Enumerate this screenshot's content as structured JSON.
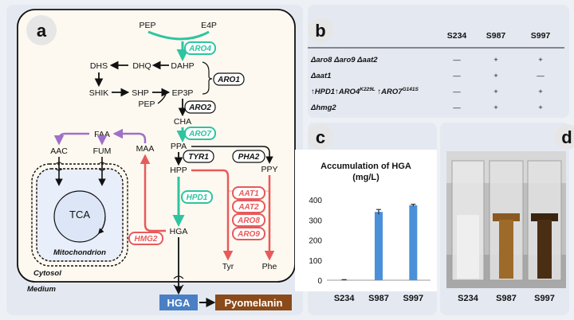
{
  "panel_labels": {
    "a": "a",
    "b": "b",
    "c": "c",
    "d": "d"
  },
  "pathway": {
    "metabolites": {
      "pep_top": "PEP",
      "e4p": "E4P",
      "dahp": "DAHP",
      "dhq": "DHQ",
      "dhs": "DHS",
      "shik": "SHIK",
      "shp": "SHP",
      "ep3p": "EP3P",
      "pep_mid": "PEP",
      "cha": "CHA",
      "ppa": "PPA",
      "hpp": "HPP",
      "ppy": "PPY",
      "faa": "FAA",
      "maa": "MAA",
      "aac": "AAC",
      "fum": "FUM",
      "hga": "HGA",
      "tyr": "Tyr",
      "phe": "Phe",
      "tca": "TCA"
    },
    "enzymes": {
      "aro4": "ARO4",
      "aro1": "ARO1",
      "aro2": "ARO2",
      "aro7": "ARO7",
      "tyr1": "TYR1",
      "pha2": "PHA2",
      "hpd1": "HPD1",
      "hmg2": "HMG2",
      "aat1": "AAT1",
      "aat2": "AAT2",
      "aro8": "ARO8",
      "aro9": "ARO9"
    },
    "compartments": {
      "mitochondrion": "Mitochondrion",
      "cytosol": "Cytosol",
      "medium": "Medium"
    },
    "products": {
      "hga": "HGA",
      "pyomelanin": "Pyomelanin"
    },
    "colors": {
      "overexpressed": "#2ec4a0",
      "deleted": "#e85a5a",
      "degradation": "#a070c8",
      "hga_box": "#4a7fc4",
      "pyomelanin_box": "#8a4a1a"
    }
  },
  "table": {
    "headers": [
      "S234",
      "S987",
      "S997"
    ],
    "rows": [
      {
        "label": "Δaro8 Δaro9 Δaat2",
        "values": [
          "—",
          "+",
          "+"
        ]
      },
      {
        "label": "Δaat1",
        "values": [
          "—",
          "+",
          "—"
        ]
      },
      {
        "label_parts": [
          "↑HPD1↑ARO4",
          "K229L",
          " ↑ARO7",
          "G141S"
        ],
        "values": [
          "—",
          "+",
          "+"
        ]
      },
      {
        "label": "Δhmg2",
        "values": [
          "—",
          "+",
          "+"
        ]
      }
    ]
  },
  "chart_data": {
    "type": "bar",
    "title": "Accumulation of HGA",
    "subtitle": "(mg/L)",
    "categories": [
      "S234",
      "S987",
      "S997"
    ],
    "values": [
      2,
      340,
      373
    ],
    "errors": [
      1,
      12,
      5
    ],
    "yticks": [
      0,
      100,
      200,
      300,
      400
    ],
    "ylim": [
      0,
      420
    ],
    "bar_color": "#4a90d9"
  },
  "photo_labels": [
    "S234",
    "S987",
    "S997"
  ]
}
